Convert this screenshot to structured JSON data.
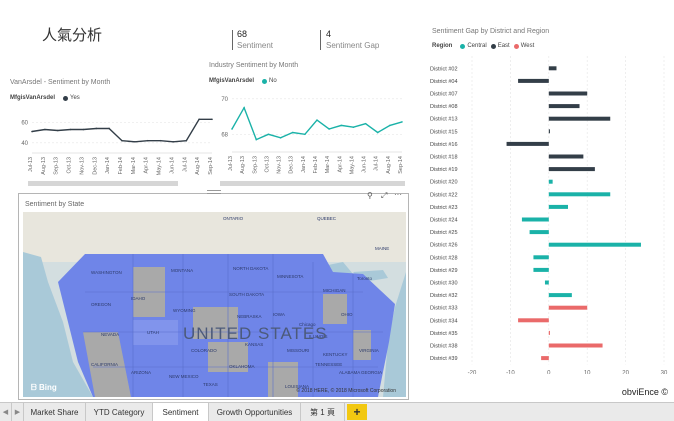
{
  "report_title": "人氣分析",
  "kpis": [
    {
      "value": "68",
      "label": "Sentiment"
    },
    {
      "value": "4",
      "label": "Sentiment Gap"
    }
  ],
  "vanarsdel_chart": {
    "title": "VanArsdel - Sentiment by Month",
    "legend_title": "MfgisVanArsdel",
    "legend_item": "Yes",
    "series_color": "#333e48",
    "y_ticks": [
      "60",
      "40"
    ],
    "x_ticks": [
      "Jul-13",
      "Aug-13",
      "Sep-13",
      "Oct-13",
      "Nov-13",
      "Dec-13",
      "Jan-14",
      "Feb-14",
      "Mar-14",
      "Apr-14",
      "May-14",
      "Jun-14",
      "Jul-14",
      "Aug-14",
      "Sep-14"
    ]
  },
  "industry_chart": {
    "title": "Industry Sentiment by Month",
    "legend_title": "MfgisVanArsdel",
    "legend_item": "No",
    "series_color": "#1ab2a8",
    "y_ticks": [
      "70",
      "68"
    ],
    "x_ticks": [
      "Jul-13",
      "Aug-13",
      "Sep-13",
      "Oct-13",
      "Nov-13",
      "Dec-13",
      "Jan-14",
      "Feb-14",
      "Mar-14",
      "Apr-14",
      "May-14",
      "Jun-14",
      "Jul-14",
      "Aug-14",
      "Sep-14"
    ]
  },
  "map_visual": {
    "title": "Sentiment by State",
    "country_label": "UNITED STATES",
    "provider": "Bing",
    "copyright": "© 2018 HERE, © 2018 Microsoft Corporation",
    "places": [
      "WASHINGTON",
      "MONTANA",
      "NORTH DAKOTA",
      "MINNESOTA",
      "OREGON",
      "IDAHO",
      "WYOMING",
      "SOUTH DAKOTA",
      "NEBRASKA",
      "NEVADA",
      "UTAH",
      "COLORADO",
      "KANSAS",
      "MISSOURI",
      "ILLINOIS",
      "OHIO",
      "IOWA",
      "CALIFORNIA",
      "ARIZONA",
      "OKLAHOMA",
      "TENNESSEE",
      "ALABAMA",
      "GEORGIA",
      "TEXAS",
      "LOUISIANA",
      "NEW MEXICO",
      "MICHIGAN",
      "MAINE",
      "KENTUCKY",
      "VIRGINIA",
      "ONTARIO",
      "QUEBEC",
      "Toronto",
      "Chicago"
    ],
    "fill_color": "#6f85e8"
  },
  "gap_chart": {
    "title": "Sentiment Gap by District and Region",
    "legend_title": "Region",
    "x_ticks": [
      "-20",
      "-10",
      "0",
      "10",
      "20",
      "30"
    ],
    "xlim": [
      -20,
      30
    ]
  },
  "chart_data": [
    {
      "type": "line",
      "title": "VanArsdel - Sentiment by Month",
      "categories": [
        "Jul-13",
        "Aug-13",
        "Sep-13",
        "Oct-13",
        "Nov-13",
        "Dec-13",
        "Jan-14",
        "Feb-14",
        "Mar-14",
        "Apr-14",
        "May-14",
        "Jun-14",
        "Jul-14",
        "Aug-14",
        "Sep-14"
      ],
      "series": [
        {
          "name": "Yes",
          "values": [
            51,
            53,
            52,
            53,
            53,
            54,
            54,
            42,
            41,
            42,
            42,
            41,
            42,
            63,
            63
          ]
        }
      ],
      "ylim": [
        30,
        75
      ]
    },
    {
      "type": "line",
      "title": "Industry Sentiment by Month",
      "categories": [
        "Jul-13",
        "Aug-13",
        "Sep-13",
        "Oct-13",
        "Nov-13",
        "Dec-13",
        "Jan-14",
        "Feb-14",
        "Mar-14",
        "Apr-14",
        "May-14",
        "Jun-14",
        "Jul-14",
        "Aug-14",
        "Sep-14"
      ],
      "series": [
        {
          "name": "No",
          "values": [
            68.3,
            69.5,
            67.7,
            68.0,
            67.8,
            68.1,
            68.0,
            68.8,
            68.3,
            68.5,
            68.4,
            68.6,
            68.1,
            68.5,
            68.7
          ]
        }
      ],
      "ylim": [
        67,
        70.5
      ]
    },
    {
      "type": "bar",
      "title": "Sentiment Gap by District and Region",
      "categories": [
        "District #02",
        "District #04",
        "District #07",
        "District #08",
        "District #13",
        "District #15",
        "District #16",
        "District #18",
        "District #19",
        "District #20",
        "District #22",
        "District #23",
        "District #24",
        "District #25",
        "District #26",
        "District #28",
        "District #29",
        "District #30",
        "District #32",
        "District #33",
        "District #34",
        "District #35",
        "District #38",
        "District #39"
      ],
      "series": [
        {
          "name": "Central",
          "color": "#1ab2a8",
          "values": [
            null,
            null,
            null,
            null,
            null,
            null,
            null,
            null,
            null,
            1,
            16,
            5,
            -7,
            -5,
            24,
            -4,
            -4,
            -1,
            6,
            null,
            null,
            null,
            null,
            null
          ]
        },
        {
          "name": "East",
          "color": "#333e48",
          "values": [
            2,
            -8,
            10,
            8,
            16,
            0.3,
            -11,
            9,
            12,
            null,
            null,
            null,
            null,
            null,
            null,
            null,
            null,
            null,
            null,
            null,
            null,
            null,
            null,
            null
          ]
        },
        {
          "name": "West",
          "color": "#ea6a6a",
          "values": [
            null,
            null,
            null,
            null,
            null,
            null,
            null,
            null,
            null,
            null,
            null,
            null,
            null,
            null,
            null,
            null,
            null,
            null,
            null,
            10,
            -8,
            0.3,
            14,
            -2
          ]
        }
      ],
      "xlim": [
        -20,
        30
      ]
    }
  ],
  "tabs": {
    "nav_prev": "◀",
    "nav_next": "▶",
    "items": [
      "Market Share",
      "YTD Category",
      "Sentiment",
      "Growth Opportunities",
      "第 1 頁"
    ],
    "active": "Sentiment",
    "add_label": "+"
  },
  "brand": "obviEnce ©"
}
